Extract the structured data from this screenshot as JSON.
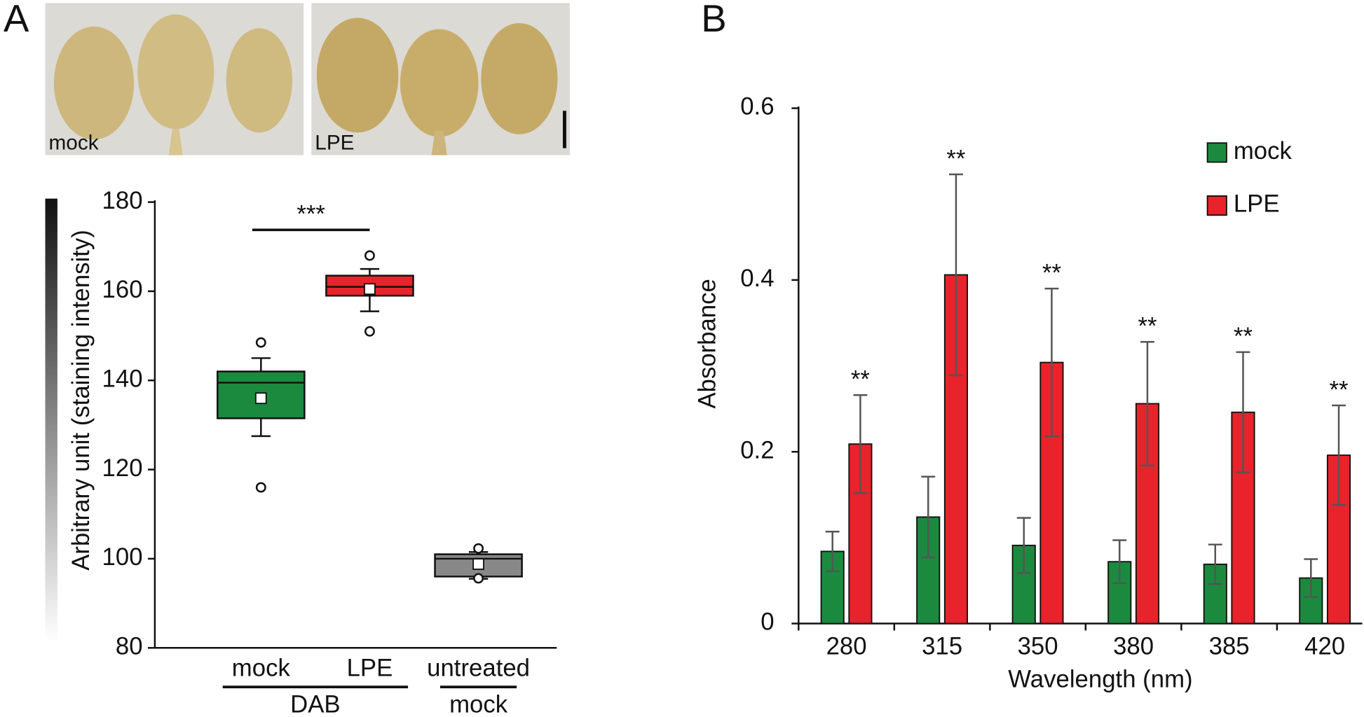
{
  "chart_data": [
    {
      "type": "box",
      "panel": "A",
      "image_labels": [
        "mock",
        "LPE"
      ],
      "y_label": "Arbitrary unit (staining intensity)",
      "categories": [
        "mock",
        "LPE",
        "untreated"
      ],
      "groups": [
        "DAB",
        "DAB",
        "mock"
      ],
      "boxes": [
        {
          "color": "#1b8a3f",
          "whisker_low": 127.5,
          "q1": 131.5,
          "median": 139.5,
          "q3": 142,
          "whisker_high": 145,
          "mean": 136,
          "outliers": [
            148.5,
            116
          ]
        },
        {
          "color": "#e8232b",
          "whisker_low": 155.5,
          "q1": 159,
          "median": 161,
          "q3": 163.5,
          "whisker_high": 165,
          "mean": 160.5,
          "outliers": [
            168,
            151
          ]
        },
        {
          "color": "#888888",
          "whisker_low": 95.5,
          "q1": 96,
          "median": 100,
          "q3": 101,
          "whisker_high": 101.5,
          "mean": 98.8,
          "outliers": [
            102.3,
            95.6
          ]
        }
      ],
      "significance": {
        "text": "***",
        "between": [
          0,
          1
        ]
      },
      "ylim": [
        80,
        180
      ],
      "yticks": [
        80,
        100,
        120,
        140,
        160,
        180
      ]
    },
    {
      "type": "bar",
      "panel": "B",
      "x_label": "Wavelength (nm)",
      "y_label": "Absorbance",
      "categories": [
        "280",
        "315",
        "350",
        "380",
        "385",
        "420"
      ],
      "series": [
        {
          "name": "mock",
          "color": "#1b8a3f",
          "values": [
            0.084,
            0.124,
            0.091,
            0.072,
            0.069,
            0.053
          ],
          "errors": [
            0.023,
            0.047,
            0.032,
            0.025,
            0.023,
            0.022
          ]
        },
        {
          "name": "LPE",
          "color": "#e8232b",
          "values": [
            0.209,
            0.406,
            0.304,
            0.256,
            0.246,
            0.196
          ],
          "errors": [
            0.057,
            0.117,
            0.086,
            0.072,
            0.07,
            0.058
          ],
          "annotations": [
            "**",
            "**",
            "**",
            "**",
            "**",
            "**"
          ]
        }
      ],
      "ylim": [
        0,
        0.6
      ],
      "yticks": [
        0,
        0.2,
        0.4,
        0.6
      ],
      "legend": "upper right"
    }
  ]
}
